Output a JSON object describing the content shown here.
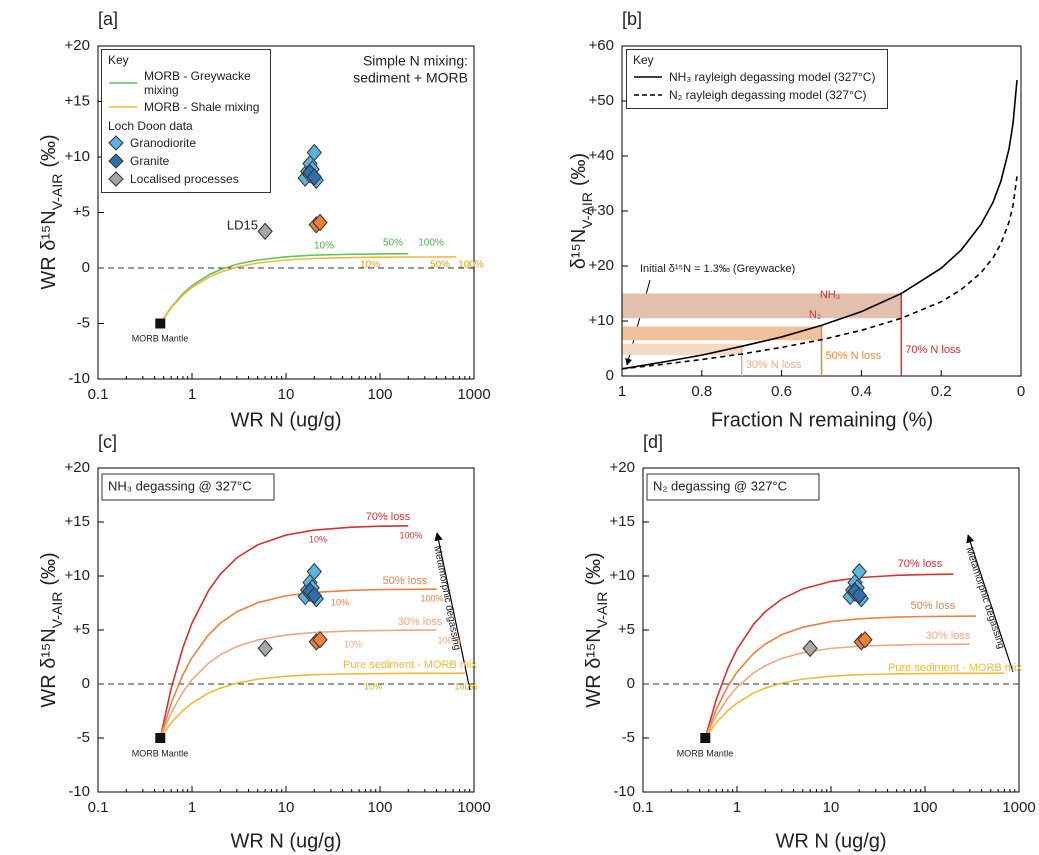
{
  "chart_data": [
    {
      "type": "line",
      "panel_label": "[a]",
      "xlog": true,
      "xlim": [
        0.1,
        1000
      ],
      "ylim": [
        -10,
        20
      ],
      "xticks": [
        0.1,
        1,
        10,
        100,
        1000
      ],
      "yticks": [
        -10,
        -5,
        0,
        {
          "value": 5,
          "label": "+5"
        },
        {
          "value": 10,
          "label": "+10"
        },
        {
          "value": 15,
          "label": "+15"
        },
        {
          "value": 20,
          "label": "+20"
        }
      ],
      "xlabel": "WR N (ug/g)",
      "ylabel": [
        "WR δ¹⁵N",
        "V-AIR",
        "(‰)"
      ],
      "hlines": [
        0
      ],
      "legend_loc": "upper left",
      "legend_title": "Key",
      "legend_group_title": "Loch Doon data",
      "series": [
        {
          "name": "MORB - Greywacke mixing",
          "color": "#5cc45c",
          "x": [
            0.46,
            0.6,
            0.8,
            1,
            1.5,
            2,
            3,
            5,
            10,
            20,
            50,
            100,
            200
          ],
          "values": [
            -5,
            -3.53,
            -2.32,
            -1.6,
            -0.63,
            -0.15,
            0.34,
            0.72,
            1.01,
            1.16,
            1.24,
            1.27,
            1.29
          ]
        },
        {
          "name": "MORB - Shale mixing",
          "color": "#f0b93a",
          "x": [
            0.46,
            0.6,
            0.8,
            1,
            1.5,
            2,
            3,
            5,
            10,
            20,
            50,
            100,
            200,
            400,
            650
          ],
          "values": [
            -5,
            -3.6,
            -2.45,
            -1.76,
            -0.84,
            -0.38,
            0.08,
            0.45,
            0.72,
            0.86,
            0.94,
            0.97,
            0.99,
            0.99,
            1.0
          ]
        },
        {
          "name": "Granodiorite",
          "color": "#5bb3e0",
          "marker": "diamond",
          "x": [
            16,
            17,
            18,
            20,
            19,
            21,
            18
          ],
          "values": [
            8.1,
            8.7,
            9.4,
            10.4,
            8.9,
            7.9,
            8.4
          ]
        },
        {
          "name": "Granite",
          "color": "#2f6fb0",
          "marker": "diamond",
          "x": [
            18,
            20
          ],
          "values": [
            8.6,
            8.2
          ]
        },
        {
          "name": "Localised processes",
          "color": "#a6a6a6",
          "marker": "diamond",
          "x": [
            6
          ],
          "values": [
            3.3
          ]
        },
        {
          "color": "#e8823c",
          "marker": "diamond",
          "x": [
            21,
            23
          ],
          "values": [
            3.9,
            4.1
          ]
        },
        {
          "color": "#111111",
          "marker": "square",
          "x": [
            0.46
          ],
          "values": [
            -5
          ]
        }
      ],
      "annotations": [
        "Simple N mixing:",
        "sediment + MORB",
        "LD15",
        "MORB Mantle",
        "10%",
        "50%",
        "100%",
        "10%",
        "50%",
        "100%"
      ]
    },
    {
      "type": "line",
      "panel_label": "[b]",
      "xlim": [
        1,
        0
      ],
      "ylim": [
        0,
        60
      ],
      "xticks": [
        1,
        0.8,
        0.6,
        0.4,
        0.2,
        0
      ],
      "yticks": [
        0,
        {
          "value": 10,
          "label": "+10"
        },
        {
          "value": 20,
          "label": "+20"
        },
        {
          "value": 30,
          "label": "+30"
        },
        {
          "value": 40,
          "label": "+40"
        },
        {
          "value": 50,
          "label": "+50"
        },
        {
          "value": 60,
          "label": "+60"
        }
      ],
      "xlabel": "Fraction N remaining (%)",
      "ylabel": [
        "δ¹⁵N",
        "V-AIR",
        "(‰)"
      ],
      "legend_loc": "upper left",
      "legend_title": "Key",
      "bands": [
        {
          "x": [
            1,
            0.3
          ],
          "y": [
            10.5,
            15
          ],
          "color": "#e3bfae"
        },
        {
          "x": [
            1,
            0.5
          ],
          "y": [
            6.5,
            9
          ],
          "color": "#efc29c"
        },
        {
          "x": [
            1,
            0.7
          ],
          "y": [
            3.8,
            5.9
          ],
          "color": "#f5dac6"
        }
      ],
      "vlines": [
        {
          "x": 0.7,
          "y": 5.4,
          "label": "30% N loss",
          "color": "#f0a884"
        },
        {
          "x": 0.5,
          "y": 9.2,
          "label": "50% N loss",
          "color": "#e8893f"
        },
        {
          "x": 0.3,
          "y": 15,
          "label": "70% N loss",
          "color": "#d03434"
        }
      ],
      "series": [
        {
          "name": "NH₃ rayleigh degassing model (327°C)",
          "color": "#000000",
          "x": [
            1,
            0.9,
            0.8,
            0.7,
            0.6,
            0.5,
            0.4,
            0.3,
            0.2,
            0.15,
            0.1,
            0.07,
            0.05,
            0.03,
            0.02,
            0.01
          ],
          "values": [
            1.3,
            2.5,
            3.8,
            5.4,
            7.1,
            9.2,
            11.7,
            15.0,
            19.6,
            22.9,
            27.6,
            31.6,
            35.5,
            41.3,
            45.9,
            53.8
          ]
        },
        {
          "name": "N₂ rayleigh degassing model (327°C)",
          "color": "#000000",
          "dash": true,
          "x": [
            1,
            0.9,
            0.8,
            0.7,
            0.6,
            0.5,
            0.4,
            0.3,
            0.2,
            0.15,
            0.1,
            0.07,
            0.05,
            0.03,
            0.02,
            0.01
          ],
          "values": [
            1.3,
            2.1,
            3.0,
            4.0,
            5.2,
            6.6,
            8.3,
            10.5,
            13.5,
            15.7,
            18.8,
            21.5,
            24.1,
            28.0,
            31.0,
            36.3
          ]
        }
      ],
      "annotations": [
        "Initial δ¹⁵N = 1.3‰ (Greywacke)",
        "NH₃",
        "N₂"
      ]
    },
    {
      "type": "line",
      "panel_label": "[c]",
      "subtitle": "NH₃ degassing @ 327°C",
      "xlog": true,
      "xlim": [
        0.1,
        1000
      ],
      "ylim": [
        -10,
        20
      ],
      "xticks": [
        0.1,
        1,
        10,
        100,
        1000
      ],
      "yticks": [
        -10,
        -5,
        0,
        {
          "value": 5,
          "label": "+5"
        },
        {
          "value": 10,
          "label": "+10"
        },
        {
          "value": 15,
          "label": "+15"
        },
        {
          "value": 20,
          "label": "+20"
        }
      ],
      "xlabel": "WR N (ug/g)",
      "ylabel": [
        "WR δ¹⁵N",
        "V-AIR",
        "(‰)"
      ],
      "hlines": [
        0
      ],
      "series": [
        {
          "name": "70% loss",
          "color": "#d03434",
          "x": [
            0.46,
            0.6,
            0.8,
            1,
            1.5,
            2,
            3,
            5,
            10,
            20,
            50,
            100,
            200
          ],
          "values": [
            -5,
            -0.41,
            3.37,
            5.64,
            8.65,
            10.17,
            11.69,
            12.89,
            13.79,
            14.25,
            14.52,
            14.61,
            14.65
          ]
        },
        {
          "name": "50% loss",
          "color": "#eb8241",
          "x": [
            0.46,
            0.6,
            0.8,
            1,
            1.5,
            2,
            3,
            5,
            10,
            20,
            50,
            100,
            200,
            400
          ],
          "values": [
            -5,
            -1.78,
            0.86,
            2.45,
            4.56,
            5.63,
            6.69,
            7.53,
            8.17,
            8.48,
            8.67,
            8.74,
            8.77,
            8.78
          ]
        },
        {
          "name": "30% loss",
          "color": "#f0a884",
          "x": [
            0.46,
            0.6,
            0.8,
            1,
            1.5,
            2,
            3,
            5,
            10,
            20,
            50,
            100,
            200,
            400
          ],
          "values": [
            -5,
            -2.67,
            -0.75,
            0.4,
            1.93,
            2.7,
            3.47,
            4.08,
            4.54,
            4.77,
            4.91,
            4.95,
            4.98,
            4.99
          ]
        },
        {
          "name": "Pure sediment - MORB mix",
          "color": "#f0b93a",
          "x": [
            0.46,
            0.6,
            0.8,
            1,
            1.5,
            2,
            3,
            5,
            10,
            20,
            50,
            100,
            200,
            400,
            800
          ],
          "values": [
            -5,
            -3.6,
            -2.45,
            -1.76,
            -0.84,
            -0.38,
            0.08,
            0.45,
            0.72,
            0.86,
            0.94,
            0.97,
            0.99,
            0.99,
            1.0
          ]
        },
        {
          "color": "#5bb3e0",
          "marker": "diamond",
          "x": [
            16,
            17,
            18,
            20,
            19,
            21,
            18
          ],
          "values": [
            8.1,
            8.7,
            9.4,
            10.4,
            8.9,
            7.9,
            8.4
          ]
        },
        {
          "color": "#2f6fb0",
          "marker": "diamond",
          "x": [
            18,
            20
          ],
          "values": [
            8.6,
            8.2
          ]
        },
        {
          "color": "#a6a6a6",
          "marker": "diamond",
          "x": [
            6
          ],
          "values": [
            3.3
          ]
        },
        {
          "color": "#e8823c",
          "marker": "diamond",
          "x": [
            21,
            23
          ],
          "values": [
            3.9,
            4.1
          ]
        },
        {
          "color": "#111111",
          "marker": "square",
          "x": [
            0.46
          ],
          "values": [
            -5
          ]
        }
      ],
      "annotations": [
        "10%",
        "100%",
        "10%",
        "100%",
        "10%",
        "100%",
        "10%",
        "100%",
        "Metamorphic degassing",
        "MORB Mantle"
      ]
    },
    {
      "type": "line",
      "panel_label": "[d]",
      "subtitle": "N₂ degassing @ 327°C",
      "xlog": true,
      "xlim": [
        0.1,
        1000
      ],
      "ylim": [
        -10,
        20
      ],
      "xticks": [
        0.1,
        1,
        10,
        100,
        1000
      ],
      "yticks": [
        -10,
        -5,
        0,
        {
          "value": 5,
          "label": "+5"
        },
        {
          "value": 10,
          "label": "+10"
        },
        {
          "value": 15,
          "label": "+15"
        },
        {
          "value": 20,
          "label": "+20"
        }
      ],
      "xlabel": "WR N (ug/g)",
      "ylabel": [
        "WR δ¹⁵N",
        "V-AIR",
        "(‰)"
      ],
      "hlines": [
        0
      ],
      "series": [
        {
          "name": "70% loss",
          "color": "#d03434",
          "x": [
            0.46,
            0.6,
            0.8,
            1,
            1.5,
            2,
            3,
            5,
            10,
            20,
            50,
            100,
            200
          ],
          "values": [
            -5,
            -1.46,
            1.46,
            3.21,
            5.53,
            6.7,
            7.87,
            8.8,
            9.5,
            9.85,
            10.06,
            10.13,
            10.17
          ]
        },
        {
          "name": "50% loss",
          "color": "#eb8241",
          "x": [
            0.46,
            0.6,
            0.8,
            1,
            1.5,
            2,
            3,
            5,
            10,
            20,
            50,
            100,
            200,
            350
          ],
          "values": [
            -5,
            -2.37,
            -0.2,
            1.1,
            2.83,
            3.7,
            4.57,
            5.26,
            5.78,
            6.04,
            6.2,
            6.25,
            6.27,
            6.29
          ]
        },
        {
          "name": "30% loss",
          "color": "#f0a884",
          "x": [
            0.46,
            0.6,
            0.8,
            1,
            1.5,
            2,
            3,
            5,
            10,
            20,
            50,
            100,
            200,
            300
          ],
          "values": [
            -5,
            -2.97,
            -1.3,
            -0.3,
            1.03,
            1.7,
            2.37,
            2.9,
            3.3,
            3.5,
            3.62,
            3.66,
            3.68,
            3.69
          ]
        },
        {
          "name": "Pure sediment - MORB mix",
          "color": "#f0b93a",
          "x": [
            0.46,
            0.6,
            0.8,
            1,
            1.5,
            2,
            3,
            5,
            10,
            20,
            50,
            100,
            200,
            400,
            700
          ],
          "values": [
            -5,
            -3.6,
            -2.45,
            -1.76,
            -0.84,
            -0.38,
            0.08,
            0.45,
            0.72,
            0.86,
            0.94,
            0.97,
            0.99,
            0.99,
            1.0
          ]
        },
        {
          "color": "#5bb3e0",
          "marker": "diamond",
          "x": [
            16,
            17,
            18,
            20,
            19,
            21,
            18
          ],
          "values": [
            8.1,
            8.7,
            9.4,
            10.4,
            8.9,
            7.9,
            8.4
          ]
        },
        {
          "color": "#2f6fb0",
          "marker": "diamond",
          "x": [
            18,
            20
          ],
          "values": [
            8.6,
            8.2
          ]
        },
        {
          "color": "#a6a6a6",
          "marker": "diamond",
          "x": [
            6
          ],
          "values": [
            3.3
          ]
        },
        {
          "color": "#e8823c",
          "marker": "diamond",
          "x": [
            21,
            23
          ],
          "values": [
            3.9,
            4.1
          ]
        },
        {
          "color": "#111111",
          "marker": "square",
          "x": [
            0.46
          ],
          "values": [
            -5
          ]
        }
      ],
      "annotations": [
        "Metamorphic degassing",
        "MORB Mantle"
      ]
    }
  ]
}
